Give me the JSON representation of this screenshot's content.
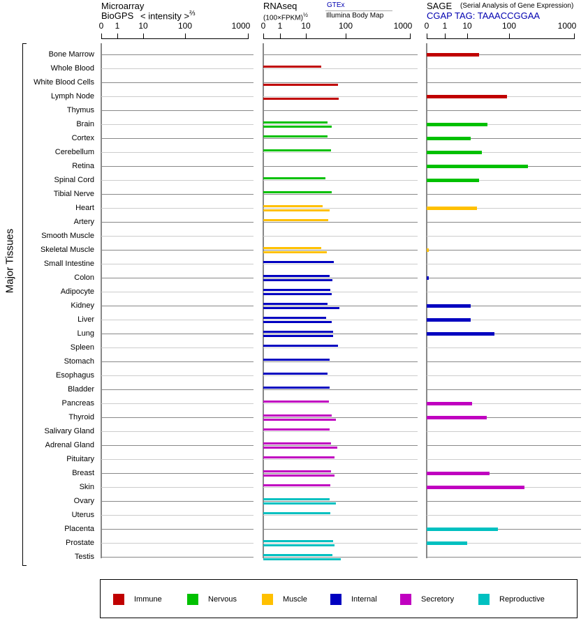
{
  "headers": {
    "microarray": {
      "title": "Microarray",
      "source": "BioGPS",
      "unit": "< intensity >",
      "unit_exp": "⅔"
    },
    "rnaseq": {
      "title": "RNAseq",
      "unit": "(100×FPKM)",
      "unit_exp": "½",
      "series_top": "GTEx",
      "series_bottom": "Illumina Body Map"
    },
    "sage": {
      "title": "SAGE",
      "subtitle": "(Serial Analysis of Gene Expression)",
      "tag": "CGAP TAG: TAAACCGGAA"
    }
  },
  "y_group_label": "Major Tissues",
  "chart_data": {
    "type": "bar",
    "orientation": "horizontal",
    "axis_ticks": [
      "0",
      "1",
      "10",
      "100",
      "1000"
    ],
    "xlim": [
      0,
      1000
    ],
    "categories": [
      "Bone Marrow",
      "Whole Blood",
      "White Blood Cells",
      "Lymph Node",
      "Thymus",
      "Brain",
      "Cortex",
      "Cerebellum",
      "Retina",
      "Spinal Cord",
      "Tibial Nerve",
      "Heart",
      "Artery",
      "Smooth Muscle",
      "Skeletal Muscle",
      "Small Intestine",
      "Colon",
      "Adipocyte",
      "Kidney",
      "Liver",
      "Lung",
      "Spleen",
      "Stomach",
      "Esophagus",
      "Bladder",
      "Pancreas",
      "Thyroid",
      "Salivary Gland",
      "Adrenal Gland",
      "Pituitary",
      "Breast",
      "Skin",
      "Ovary",
      "Uterus",
      "Placenta",
      "Prostate",
      "Testis"
    ],
    "groups": [
      "Immune",
      "Immune",
      "Immune",
      "Immune",
      "Immune",
      "Nervous",
      "Nervous",
      "Nervous",
      "Nervous",
      "Nervous",
      "Nervous",
      "Muscle",
      "Muscle",
      "Muscle",
      "Muscle",
      "Internal",
      "Internal",
      "Internal",
      "Internal",
      "Internal",
      "Internal",
      "Internal",
      "Internal",
      "Internal",
      "Internal",
      "Secretory",
      "Secretory",
      "Secretory",
      "Secretory",
      "Secretory",
      "Secretory",
      "Secretory",
      "Reproductive",
      "Reproductive",
      "Reproductive",
      "Reproductive",
      "Reproductive"
    ],
    "series": [
      {
        "name": "Microarray BioGPS",
        "panel": "microarray",
        "values": [
          null,
          null,
          null,
          null,
          null,
          null,
          null,
          null,
          null,
          null,
          null,
          null,
          null,
          null,
          null,
          null,
          null,
          null,
          null,
          null,
          null,
          null,
          null,
          null,
          null,
          null,
          null,
          null,
          null,
          null,
          null,
          null,
          null,
          null,
          null,
          null,
          null
        ]
      },
      {
        "name": "GTEx",
        "panel": "rnaseq",
        "values": [
          null,
          24,
          null,
          null,
          null,
          35,
          35,
          43,
          null,
          31,
          45,
          26,
          36,
          null,
          24,
          50,
          39,
          41,
          35,
          32,
          48,
          64,
          39,
          35,
          39,
          38,
          45,
          39,
          43,
          52,
          43,
          41,
          39,
          41,
          null,
          48,
          46
        ]
      },
      {
        "name": "Illumina Body Map",
        "panel": "rnaseq",
        "values": [
          null,
          null,
          64,
          67,
          null,
          45,
          null,
          null,
          null,
          null,
          null,
          39,
          null,
          null,
          34,
          null,
          46,
          45,
          70,
          45,
          48,
          null,
          null,
          null,
          null,
          null,
          57,
          null,
          62,
          null,
          52,
          null,
          57,
          null,
          null,
          52,
          75
        ]
      },
      {
        "name": "SAGE",
        "panel": "sage",
        "values": [
          19,
          null,
          null,
          89,
          null,
          30,
          12,
          22,
          195,
          19,
          null,
          17,
          null,
          null,
          0.1,
          null,
          0.1,
          null,
          12,
          12,
          45,
          null,
          null,
          null,
          null,
          13,
          29,
          null,
          null,
          null,
          34,
          172,
          null,
          null,
          54,
          10,
          null
        ]
      }
    ],
    "legend": [
      {
        "label": "Immune",
        "color": "#c00000"
      },
      {
        "label": "Nervous",
        "color": "#00c000"
      },
      {
        "label": "Muscle",
        "color": "#ffc000"
      },
      {
        "label": "Internal",
        "color": "#0000c0"
      },
      {
        "label": "Secretory",
        "color": "#c000c0"
      },
      {
        "label": "Reproductive",
        "color": "#00c0c0"
      }
    ],
    "legend_position": "bottom"
  }
}
